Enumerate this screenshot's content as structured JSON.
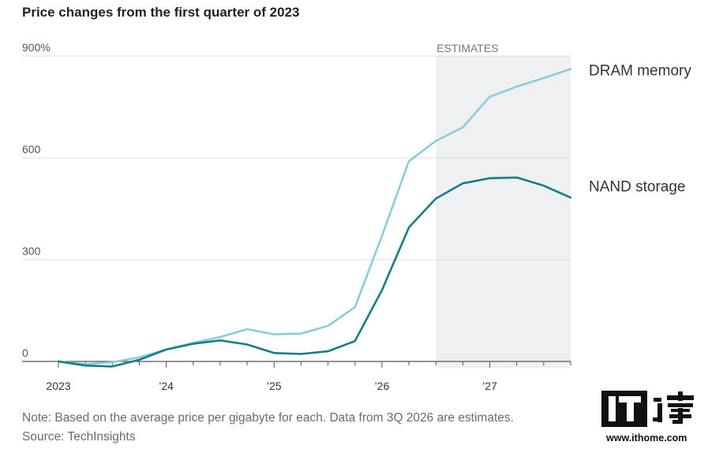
{
  "title": "Price changes from the first quarter of 2023",
  "note": "Note: Based on the average price per gigabyte for each. Data from 3Q 2026 are estimates.",
  "source": "Source: TechInsights",
  "logo": {
    "url": "www.ithome.com"
  },
  "chart_data": {
    "type": "line",
    "title": "Price changes from the first quarter of 2023",
    "x_ticks": [
      "2023",
      "’24",
      "’25",
      "’26",
      "’27"
    ],
    "y_ticks": [
      "900%",
      "600",
      "300",
      "0"
    ],
    "ylim": [
      0,
      900
    ],
    "estimates_label": "ESTIMATES",
    "estimates_start_quarter": "2026 Q3",
    "quarters": [
      "2023 Q1",
      "2023 Q2",
      "2023 Q3",
      "2023 Q4",
      "2024 Q1",
      "2024 Q2",
      "2024 Q3",
      "2024 Q4",
      "2025 Q1",
      "2025 Q2",
      "2025 Q3",
      "2025 Q4",
      "2026 Q1",
      "2026 Q2",
      "2026 Q3",
      "2026 Q4",
      "2027 Q1",
      "2027 Q2",
      "2027 Q3",
      "2027 Q4"
    ],
    "series": [
      {
        "name": "DRAM memory",
        "color": "#8ccbdc",
        "values": [
          0,
          -8,
          -2,
          12,
          35,
          55,
          72,
          95,
          80,
          82,
          105,
          160,
          370,
          590,
          650,
          690,
          780,
          810,
          835,
          862
        ]
      },
      {
        "name": "NAND storage",
        "color": "#127f86",
        "values": [
          0,
          -12,
          -15,
          5,
          35,
          52,
          62,
          50,
          25,
          22,
          30,
          60,
          210,
          395,
          480,
          525,
          540,
          542,
          518,
          483
        ]
      }
    ],
    "grid": true,
    "legend": "right, inline at line ends"
  }
}
